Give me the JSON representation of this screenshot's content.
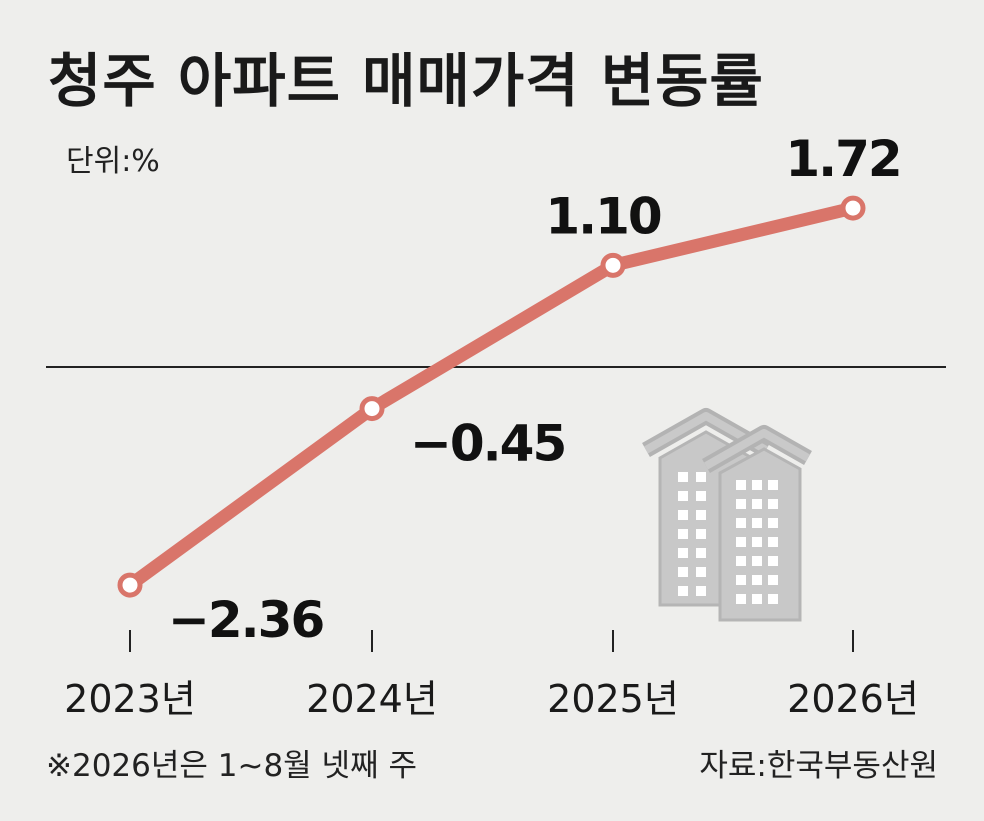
{
  "title": "청주 아파트 매매가격 변동률",
  "unit_label": "단위:%",
  "footnote": "※2026년은 1~8월 넷째 주",
  "source": "자료:한국부동산원",
  "colors": {
    "line": "#d9756a",
    "background": "#eeeeec",
    "building_fill": "#c8c8c8",
    "building_window": "#ffffff"
  },
  "chart_data": {
    "type": "line",
    "title": "청주 아파트 매매가격 변동률",
    "xlabel": "",
    "ylabel": "단위:%",
    "categories": [
      "2023년",
      "2024년",
      "2025년",
      "2026년"
    ],
    "series": [
      {
        "values": [
          -2.36,
          -0.45,
          1.1,
          1.72
        ],
        "labels": [
          "−2.36",
          "−0.45",
          "1.10",
          "1.72"
        ]
      }
    ],
    "zero_line": true,
    "grid": false,
    "legend": "none",
    "decoration": "apartment-buildings-icon"
  }
}
